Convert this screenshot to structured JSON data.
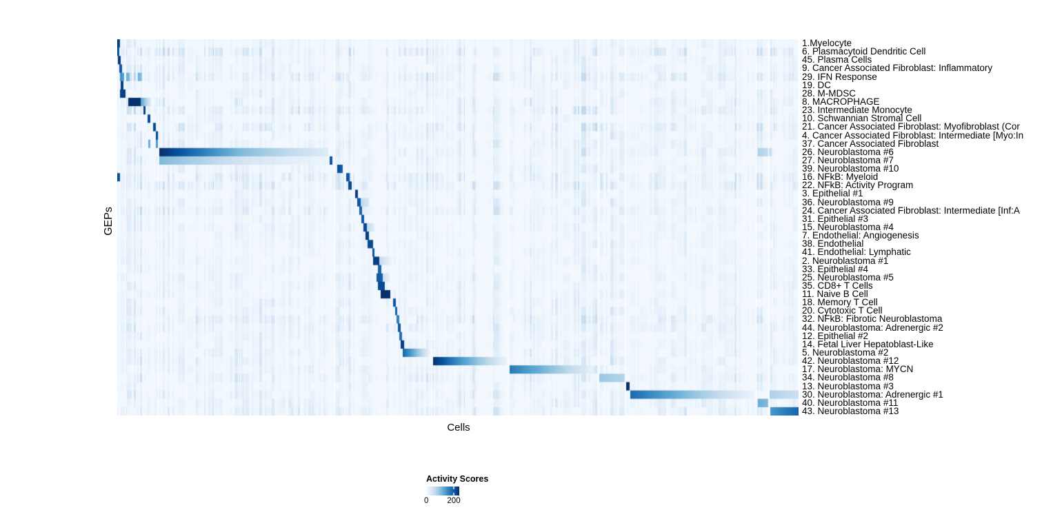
{
  "axes": {
    "x_label": "Cells",
    "y_label": "GEPs"
  },
  "legend": {
    "title": "Activity Scores",
    "tick_labels": [
      "0",
      "200"
    ]
  },
  "chart_data": {
    "type": "heatmap",
    "title": "",
    "xlabel": "Cells",
    "ylabel": "GEPs",
    "x_ticks": "none (individual single cells, unlabeled columns)",
    "n_rows": 45,
    "grid": false,
    "legend": {
      "title": "Activity Scores",
      "min": 0,
      "ticks": [
        0,
        200
      ],
      "bar_max_score_estimate": 240,
      "position": "bottom"
    },
    "colormap": {
      "name": "Blues",
      "stops": [
        "#f7fbff",
        "#deebf7",
        "#c6dbef",
        "#9ecae1",
        "#6baed6",
        "#4292c6",
        "#2171b5",
        "#08519c",
        "#08306b"
      ]
    },
    "value_encoding": "Each row lists high-activity cell blocks as [x_start_frac, x_end_frac, v_start, v_end]; v is activity normalized 0-1 where 1.0 ~ score 240 (legend scale 0-200+). 'noise' is the background stripe activity level of that GEP across all cells.",
    "column_gaps": [
      0.0605,
      0.3185,
      0.4615,
      0.5745,
      0.7055,
      0.7455,
      0.938,
      0.956
    ],
    "rows": [
      {
        "label": "1.Myelocyte",
        "noise": 0.1,
        "blocks": [
          [
            0.0,
            0.004,
            1.0,
            0.9
          ]
        ]
      },
      {
        "label": "6. Plasmacytoid Dendritic Cell",
        "noise": 0.24,
        "blocks": [
          [
            0.0,
            0.003,
            0.9,
            0.85
          ]
        ]
      },
      {
        "label": "45. Plasma Cells",
        "noise": 0.1,
        "blocks": [
          [
            0.001,
            0.005,
            1.0,
            0.95
          ]
        ]
      },
      {
        "label": "9. Cancer Associated Fibroblast: Inflammatory",
        "noise": 0.12,
        "blocks": [
          [
            0.003,
            0.007,
            0.85,
            0.85
          ]
        ]
      },
      {
        "label": "29. IFN Response",
        "noise": 0.2,
        "blocks": [
          [
            0.004,
            0.01,
            0.65,
            0.55
          ],
          [
            0.013,
            0.018,
            0.5,
            0.45
          ],
          [
            0.03,
            0.036,
            0.5,
            0.4
          ]
        ]
      },
      {
        "label": "19. DC",
        "noise": 0.1,
        "blocks": [
          [
            0.005,
            0.009,
            0.95,
            0.95
          ]
        ]
      },
      {
        "label": "28. M-MDSC",
        "noise": 0.12,
        "blocks": [
          [
            0.004,
            0.012,
            0.92,
            0.95
          ]
        ]
      },
      {
        "label": "8. MACROPHAGE",
        "noise": 0.15,
        "blocks": [
          [
            0.016,
            0.034,
            1.0,
            1.0
          ],
          [
            0.034,
            0.05,
            0.55,
            0.12
          ]
        ]
      },
      {
        "label": "23. Intermediate Monocyte",
        "noise": 0.2,
        "blocks": [
          [
            0.038,
            0.042,
            0.95,
            0.95
          ]
        ]
      },
      {
        "label": "10. Schwannian Stromal Cell",
        "noise": 0.1,
        "blocks": [
          [
            0.045,
            0.049,
            0.9,
            0.9
          ]
        ]
      },
      {
        "label": "21. Cancer Associated Fibroblast: Myofibroblast (Cor",
        "noise": 0.22,
        "blocks": [
          [
            0.053,
            0.057,
            0.9,
            0.9
          ]
        ]
      },
      {
        "label": "4. Cancer Associated Fibroblast: Intermediate [Myo:In",
        "noise": 0.12,
        "blocks": [
          [
            0.057,
            0.061,
            0.9,
            0.9
          ]
        ]
      },
      {
        "label": "37. Cancer Associated Fibroblast",
        "noise": 0.13,
        "blocks": [
          [
            0.046,
            0.049,
            0.5,
            0.5
          ],
          [
            0.057,
            0.06,
            0.6,
            0.6
          ]
        ]
      },
      {
        "label": "26. Neuroblastoma #6",
        "noise": 0.16,
        "blocks": [
          [
            0.062,
            0.18,
            1.0,
            0.45
          ],
          [
            0.18,
            0.31,
            0.45,
            0.12
          ],
          [
            0.94,
            0.96,
            0.32,
            0.25
          ]
        ]
      },
      {
        "label": "27. Neuroblastoma #7",
        "noise": 0.13,
        "blocks": [
          [
            0.062,
            0.2,
            0.45,
            0.15
          ],
          [
            0.2,
            0.31,
            0.15,
            0.05
          ],
          [
            0.312,
            0.316,
            0.85,
            0.85
          ]
        ]
      },
      {
        "label": "39. Neuroblastoma #10",
        "noise": 0.11,
        "blocks": [
          [
            0.323,
            0.331,
            0.9,
            0.8
          ]
        ]
      },
      {
        "label": "16. NFkB: Myeloid",
        "noise": 0.2,
        "blocks": [
          [
            0.0,
            0.004,
            0.88,
            0.88
          ],
          [
            0.336,
            0.341,
            0.85,
            0.85
          ]
        ]
      },
      {
        "label": "22. NFkB: Activity Program",
        "noise": 0.23,
        "blocks": [
          [
            0.339,
            0.344,
            0.9,
            0.9
          ]
        ]
      },
      {
        "label": "3. Epithelial #1",
        "noise": 0.09,
        "blocks": [
          [
            0.349,
            0.353,
            0.95,
            0.95
          ]
        ]
      },
      {
        "label": "36. Neuroblastoma #9",
        "noise": 0.11,
        "blocks": [
          [
            0.352,
            0.357,
            0.85,
            0.85
          ],
          [
            0.357,
            0.369,
            0.28,
            0.15
          ]
        ]
      },
      {
        "label": "24. Cancer Associated Fibroblast: Intermediate [Inf:A",
        "noise": 0.19,
        "blocks": [
          [
            0.355,
            0.359,
            0.8,
            0.8
          ]
        ]
      },
      {
        "label": "31. Epithelial #3",
        "noise": 0.09,
        "blocks": [
          [
            0.358,
            0.362,
            0.85,
            0.85
          ]
        ]
      },
      {
        "label": "15. Neuroblastoma #4",
        "noise": 0.11,
        "blocks": [
          [
            0.361,
            0.366,
            0.9,
            0.9
          ],
          [
            0.366,
            0.378,
            0.25,
            0.12
          ]
        ]
      },
      {
        "label": "7. Endothelial: Angiogenesis",
        "noise": 0.1,
        "blocks": [
          [
            0.364,
            0.369,
            0.95,
            0.95
          ]
        ]
      },
      {
        "label": "38. Endothelial",
        "noise": 0.1,
        "blocks": [
          [
            0.367,
            0.375,
            0.9,
            0.9
          ]
        ]
      },
      {
        "label": "41. Endothelial: Lymphatic",
        "noise": 0.09,
        "blocks": [
          [
            0.374,
            0.378,
            0.85,
            0.85
          ]
        ]
      },
      {
        "label": "2. Neuroblastoma #1",
        "noise": 0.11,
        "blocks": [
          [
            0.376,
            0.385,
            0.95,
            0.95
          ],
          [
            0.385,
            0.403,
            0.25,
            0.06
          ]
        ]
      },
      {
        "label": "33. Epithelial #4",
        "noise": 0.1,
        "blocks": [
          [
            0.383,
            0.388,
            0.8,
            0.8
          ]
        ]
      },
      {
        "label": "25. Neuroblastoma #5",
        "noise": 0.12,
        "blocks": [
          [
            0.381,
            0.39,
            0.85,
            0.8
          ],
          [
            0.39,
            0.4,
            0.2,
            0.1
          ]
        ]
      },
      {
        "label": "35. CD8+ T Cells",
        "noise": 0.12,
        "blocks": [
          [
            0.383,
            0.393,
            0.9,
            0.9
          ]
        ]
      },
      {
        "label": "11. Naive B Cell",
        "noise": 0.1,
        "blocks": [
          [
            0.387,
            0.401,
            1.0,
            1.0
          ]
        ]
      },
      {
        "label": "18. Memory T Cell",
        "noise": 0.12,
        "blocks": [
          [
            0.405,
            0.409,
            0.85,
            0.85
          ]
        ]
      },
      {
        "label": "20. Cytotoxic T Cell",
        "noise": 0.12,
        "blocks": [
          [
            0.408,
            0.411,
            0.8,
            0.8
          ]
        ]
      },
      {
        "label": "32. NFkB: Fibrotic Neuroblastoma",
        "noise": 0.21,
        "blocks": [
          [
            0.41,
            0.414,
            0.7,
            0.7
          ]
        ]
      },
      {
        "label": "44. Neuroblastoma: Adrenergic #2",
        "noise": 0.16,
        "blocks": [
          [
            0.412,
            0.416,
            0.85,
            0.85
          ]
        ]
      },
      {
        "label": "12. Epithelial #2",
        "noise": 0.11,
        "blocks": [
          [
            0.414,
            0.418,
            0.75,
            0.75
          ]
        ]
      },
      {
        "label": "14. Fetal Liver Hepatoblast-Like",
        "noise": 0.11,
        "blocks": [
          [
            0.416,
            0.421,
            0.95,
            0.95
          ]
        ]
      },
      {
        "label": "5. Neuroblastoma #2",
        "noise": 0.13,
        "blocks": [
          [
            0.419,
            0.458,
            0.8,
            0.08
          ]
        ]
      },
      {
        "label": "42. Neuroblastoma #12",
        "noise": 0.14,
        "blocks": [
          [
            0.464,
            0.51,
            1.0,
            0.55
          ],
          [
            0.51,
            0.572,
            0.55,
            0.06
          ]
        ]
      },
      {
        "label": "17. Neuroblastoma: MYCN",
        "noise": 0.13,
        "blocks": [
          [
            0.576,
            0.64,
            0.72,
            0.4
          ],
          [
            0.64,
            0.704,
            0.4,
            0.04
          ]
        ]
      },
      {
        "label": "34. Neuroblastoma #8",
        "noise": 0.16,
        "blocks": [
          [
            0.707,
            0.746,
            0.38,
            0.3
          ]
        ]
      },
      {
        "label": "13. Neuroblastoma #3",
        "noise": 0.1,
        "blocks": [
          [
            0.747,
            0.752,
            1.0,
            1.0
          ]
        ]
      },
      {
        "label": "30. Neuroblastoma: Adrenergic #1",
        "noise": 0.13,
        "blocks": [
          [
            0.753,
            0.82,
            0.78,
            0.5
          ],
          [
            0.82,
            0.935,
            0.5,
            0.05
          ],
          [
            0.957,
            1.0,
            0.32,
            0.22
          ]
        ]
      },
      {
        "label": "40. Neuroblastoma #11",
        "noise": 0.16,
        "blocks": [
          [
            0.94,
            0.956,
            0.5,
            0.45
          ]
        ]
      },
      {
        "label": "43. Neuroblastoma #13",
        "noise": 0.18,
        "blocks": [
          [
            0.958,
            1.0,
            0.6,
            0.8
          ]
        ]
      }
    ]
  }
}
